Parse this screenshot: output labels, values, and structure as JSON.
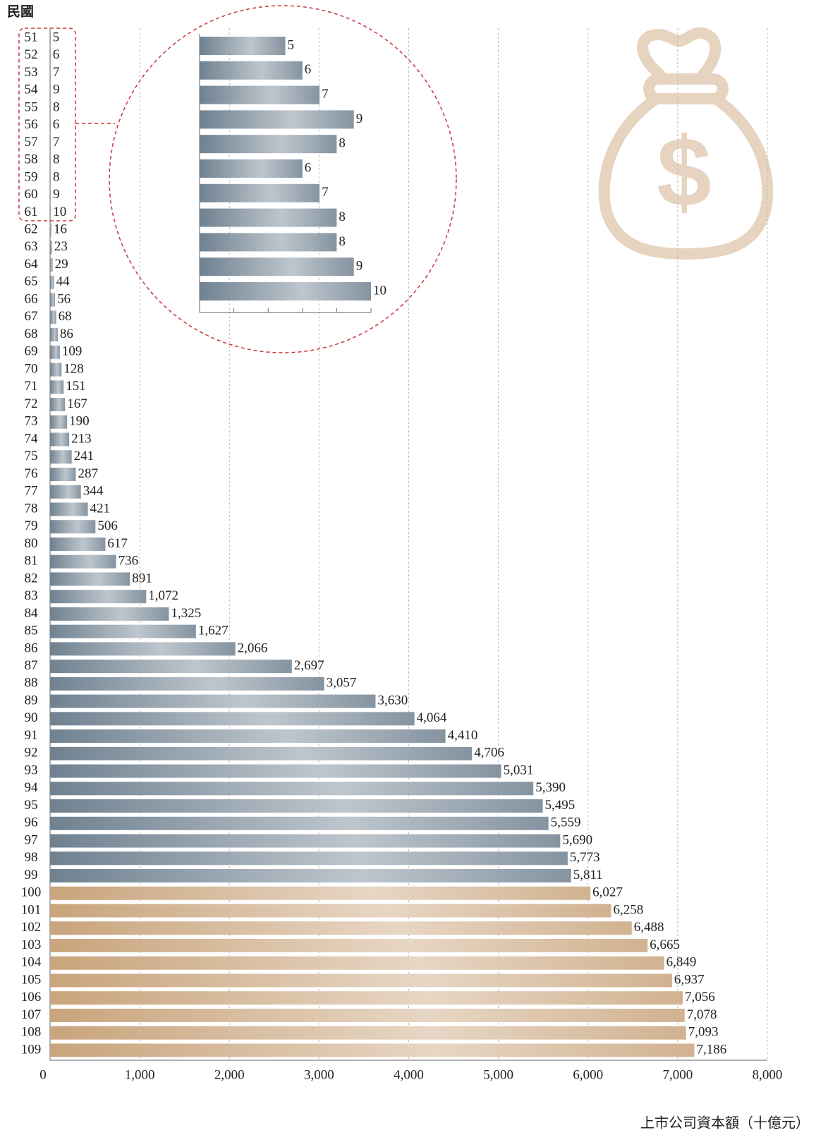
{
  "chart_data": {
    "type": "bar",
    "orientation": "horizontal",
    "y_label": "民國",
    "x_label": "上市公司資本額（十億元）",
    "categories": [
      "51",
      "52",
      "53",
      "54",
      "55",
      "56",
      "57",
      "58",
      "59",
      "60",
      "61",
      "62",
      "63",
      "64",
      "65",
      "66",
      "67",
      "68",
      "69",
      "70",
      "71",
      "72",
      "73",
      "74",
      "75",
      "76",
      "77",
      "78",
      "79",
      "80",
      "81",
      "82",
      "83",
      "84",
      "85",
      "86",
      "87",
      "88",
      "89",
      "90",
      "91",
      "92",
      "93",
      "94",
      "95",
      "96",
      "97",
      "98",
      "99",
      "100",
      "101",
      "102",
      "103",
      "104",
      "105",
      "106",
      "107",
      "108",
      "109"
    ],
    "values": [
      5,
      6,
      7,
      9,
      8,
      6,
      7,
      8,
      8,
      9,
      10,
      16,
      23,
      29,
      44,
      56,
      68,
      86,
      109,
      128,
      151,
      167,
      190,
      213,
      241,
      287,
      344,
      421,
      506,
      617,
      736,
      891,
      1072,
      1325,
      1627,
      2066,
      2697,
      3057,
      3630,
      4064,
      4410,
      4706,
      5031,
      5390,
      5495,
      5559,
      5690,
      5773,
      5811,
      6027,
      6258,
      6488,
      6665,
      6849,
      6937,
      7056,
      7078,
      7093,
      7186
    ],
    "value_labels": [
      "5",
      "6",
      "7",
      "9",
      "8",
      "6",
      "7",
      "8",
      "8",
      "9",
      "10",
      "16",
      "23",
      "29",
      "44",
      "56",
      "68",
      "86",
      "109",
      "128",
      "151",
      "167",
      "190",
      "213",
      "241",
      "287",
      "344",
      "421",
      "506",
      "617",
      "736",
      "891",
      "1,072",
      "1,325",
      "1,627",
      "2,066",
      "2,697",
      "3,057",
      "3,630",
      "4,064",
      "4,410",
      "4,706",
      "5,031",
      "5,390",
      "5,495",
      "5,559",
      "5,690",
      "5,773",
      "5,811",
      "6,027",
      "6,258",
      "6,488",
      "6,665",
      "6,849",
      "6,937",
      "7,056",
      "7,078",
      "7,093",
      "7,186"
    ],
    "colors": [
      "#6f8190",
      "#6f8190",
      "#6f8190",
      "#6f8190",
      "#6f8190",
      "#6f8190",
      "#6f8190",
      "#6f8190",
      "#6f8190",
      "#6f8190",
      "#6f8190",
      "#6f8190",
      "#6f8190",
      "#6f8190",
      "#6f8190",
      "#6f8190",
      "#6f8190",
      "#6f8190",
      "#6f8190",
      "#6f8190",
      "#6f8190",
      "#6f8190",
      "#6f8190",
      "#6f8190",
      "#6f8190",
      "#6f8190",
      "#6f8190",
      "#6f8190",
      "#6f8190",
      "#6f8190",
      "#6f8190",
      "#6f8190",
      "#6f8190",
      "#6f8190",
      "#6f8190",
      "#6f8190",
      "#6f8190",
      "#6f8190",
      "#6f8190",
      "#6f8190",
      "#6f8190",
      "#6f8190",
      "#6f8190",
      "#6f8190",
      "#6f8190",
      "#6f8190",
      "#6f8190",
      "#6f8190",
      "#6f8190",
      "#c9a47c",
      "#c9a47c",
      "#c9a47c",
      "#c9a47c",
      "#c9a47c",
      "#c9a47c",
      "#c9a47c",
      "#c9a47c",
      "#c9a47c",
      "#c9a47c"
    ],
    "xlim": [
      0,
      8000
    ],
    "xticks": [
      0,
      {
        "value": 1000,
        "label": "1,000"
      },
      {
        "value": 2000,
        "label": "2,000"
      },
      {
        "value": 3000,
        "label": "3,000"
      },
      {
        "value": 4000,
        "label": "4,000"
      },
      {
        "value": 5000,
        "label": "5,000"
      },
      {
        "value": 6000,
        "label": "6,000"
      },
      {
        "value": 7000,
        "label": "7,000"
      },
      {
        "value": 8000,
        "label": "8,000"
      }
    ],
    "grid": true,
    "inset": {
      "xlim": [
        0,
        10
      ],
      "xticks": [
        0,
        2,
        4,
        6,
        8,
        10
      ]
    }
  }
}
